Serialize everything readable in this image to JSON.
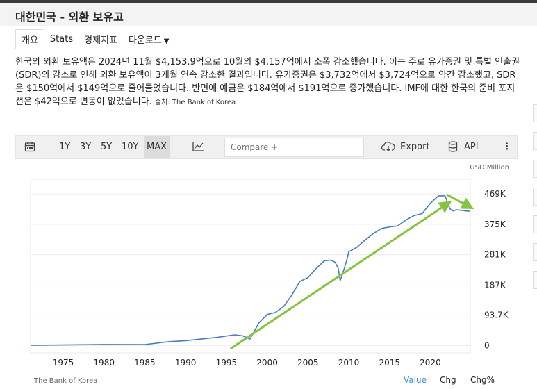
{
  "page": {
    "title": "대한민국 - 외환 보유고"
  },
  "tabs": [
    {
      "label": "개요"
    },
    {
      "label": "Stats"
    },
    {
      "label": "경제지표"
    },
    {
      "label": "다운로드"
    }
  ],
  "description": {
    "text": "한국의 외환 보유액은 2024년 11월 $4,153.9억으로 10월의 $4,157억에서 소폭 감소했습니다. 이는 주로 유가증권 및 특별 인출권(SDR)의 감소로 인해 외환 보유액이 3개월 연속 감소한 결과입니다. 유가증권은 $3,732억에서 $3,724억으로 약간 감소했고, SDR은 $150억에서 $149억으로 줄어들었습니다. 반면에 예금은 $184억에서 $191억으로 증가했습니다. IMF에 대한 한국의 준비 포지션은 $42억으로 변동이 없었습니다.",
    "source": "출처: The Bank of Korea"
  },
  "toolbar": {
    "ranges": [
      "1Y",
      "3Y",
      "5Y",
      "10Y",
      "MAX"
    ],
    "active_range": "MAX",
    "compare_placeholder": "Compare +",
    "export_label": "Export",
    "api_label": "API"
  },
  "colors": {
    "line": "#4a79c4",
    "arrow": "#86c440",
    "active_mode": "#3b8fd6"
  },
  "chart_data": {
    "type": "line",
    "unit": "USD Million",
    "source": "The Bank of Korea",
    "ylim": [
      -10000,
      510000
    ],
    "xlim": [
      1971,
      2024.9
    ],
    "y_ticks": [
      {
        "value": 0,
        "label": "0"
      },
      {
        "value": 93700,
        "label": "93.7K"
      },
      {
        "value": 187000,
        "label": "187K"
      },
      {
        "value": 281000,
        "label": "281K"
      },
      {
        "value": 375000,
        "label": "375K"
      },
      {
        "value": 469000,
        "label": "469K"
      }
    ],
    "x_ticks": [
      1975,
      1980,
      1985,
      1990,
      1995,
      2000,
      2005,
      2010,
      2015,
      2020
    ],
    "grid": "horizontal",
    "series": [
      {
        "x": [
          1971,
          1975,
          1980,
          1985,
          1988,
          1990,
          1994,
          1996,
          1997,
          1997.9,
          1998.5,
          1999,
          2000,
          2001,
          2002,
          2003,
          2004,
          2005,
          2006,
          2007,
          2007.8,
          2008.3,
          2008.7,
          2008.95,
          2009.3,
          2009.8,
          2010,
          2011,
          2012,
          2013,
          2014,
          2015,
          2016,
          2017,
          2018,
          2019,
          2020,
          2021,
          2021.8,
          2022.4,
          2022.8,
          2023.2,
          2023.8,
          2024.4,
          2024.9
        ],
        "y": [
          500,
          1500,
          3000,
          2800,
          12000,
          15000,
          25600,
          33000,
          30000,
          20000,
          48000,
          70000,
          96000,
          102000,
          120000,
          155000,
          198000,
          210000,
          238000,
          262000,
          264000,
          258000,
          240000,
          201000,
          226000,
          268000,
          290000,
          304000,
          326000,
          346000,
          362000,
          367000,
          370000,
          388000,
          402000,
          408000,
          440000,
          463000,
          463000,
          423000,
          416000,
          420000,
          418000,
          416000,
          415000
        ]
      }
    ],
    "trend_arrows": [
      {
        "x": [
          1995.5,
          2022.2
        ],
        "y": [
          -10000,
          440000
        ]
      },
      {
        "x": [
          2022.0,
          2024.9
        ],
        "y": [
          467000,
          428000
        ]
      }
    ]
  },
  "modes": [
    "Value",
    "Chg",
    "Chg%"
  ],
  "active_mode": "Value"
}
